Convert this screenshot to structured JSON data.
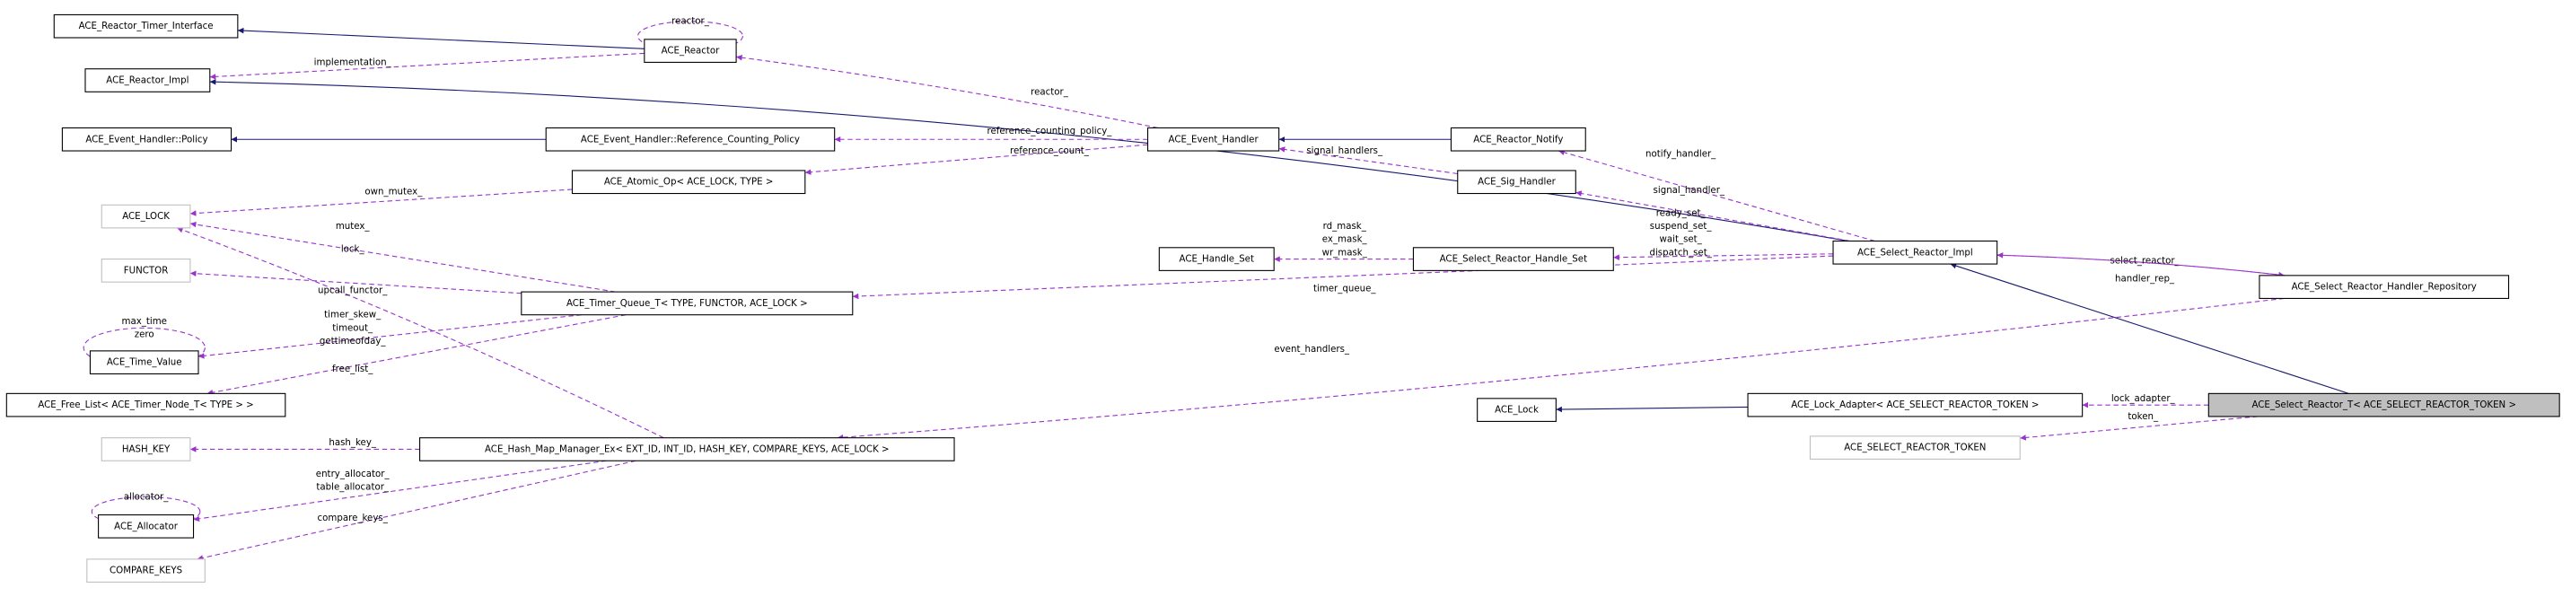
{
  "nodes": [
    {
      "label": "ACE_Reactor_Timer_Interface"
    },
    {
      "label": "ACE_Reactor"
    },
    {
      "label": "ACE_Reactor_Impl"
    },
    {
      "label": "ACE_Event_Handler::Policy"
    },
    {
      "label": "ACE_Event_Handler::Reference_Counting_Policy"
    },
    {
      "label": "ACE_Event_Handler"
    },
    {
      "label": "ACE_Reactor_Notify"
    },
    {
      "label": "ACE_LOCK"
    },
    {
      "label": "ACE_Atomic_Op< ACE_LOCK, TYPE >"
    },
    {
      "label": "ACE_Sig_Handler"
    },
    {
      "label": "FUNCTOR"
    },
    {
      "label": "ACE_Handle_Set"
    },
    {
      "label": "ACE_Select_Reactor_Handle_Set"
    },
    {
      "label": "ACE_Select_Reactor_Impl"
    },
    {
      "label": "ACE_Select_Reactor_Handler_Repository"
    },
    {
      "label": "ACE_Timer_Queue_T< TYPE, FUNCTOR, ACE_LOCK >"
    },
    {
      "label": "ACE_Time_Value"
    },
    {
      "label": "ACE_Free_List< ACE_Timer_Node_T< TYPE > >"
    },
    {
      "label": "ACE_Lock"
    },
    {
      "label": "ACE_Lock_Adapter< ACE_SELECT_REACTOR_TOKEN >"
    },
    {
      "label": "ACE_Select_Reactor_T< ACE_SELECT_REACTOR_TOKEN >"
    },
    {
      "label": "HASH_KEY"
    },
    {
      "label": "ACE_Hash_Map_Manager_Ex< EXT_ID, INT_ID, HASH_KEY, COMPARE_KEYS, ACE_LOCK >"
    },
    {
      "label": "ACE_SELECT_REACTOR_TOKEN"
    },
    {
      "label": "ACE_Allocator"
    },
    {
      "label": "COMPARE_KEYS"
    }
  ],
  "edge_labels": [
    "reactor_",
    "implementation_",
    "reactor_",
    "reference_counting_policy_",
    "reference_count_",
    "signal_handlers_",
    "notify_handler_",
    "signal_handler_",
    "own_mutex_",
    "mutex_",
    "lock_",
    "rd_mask_",
    "ex_mask_",
    "wr_mask_",
    "ready_set_",
    "suspend_set_",
    "wait_set_",
    "dispatch_set_",
    "upcall_functor_",
    "max_time",
    "zero",
    "timer_skew_",
    "timeout_",
    "gettimeofday_",
    "free_list_",
    "timer_queue_",
    "select_reactor_",
    "handler_rep_",
    "event_handlers_",
    "lock_adapter_",
    "token_",
    "hash_key_",
    "entry_allocator_",
    "table_allocator_",
    "allocator_",
    "compare_keys_"
  ]
}
